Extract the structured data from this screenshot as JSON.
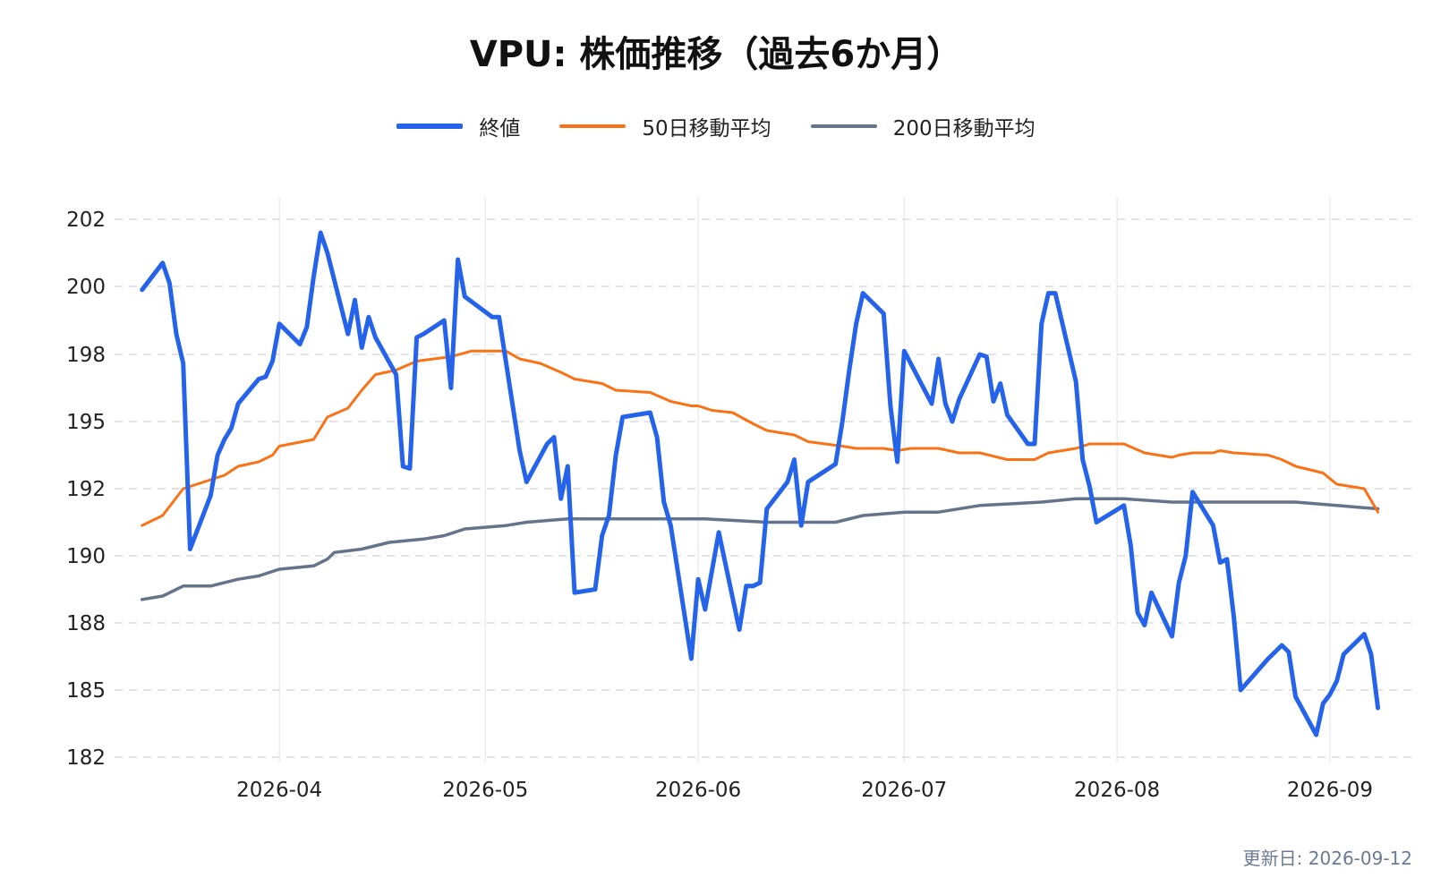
{
  "title": "VPU: 株価推移（過去6か月）",
  "updated": "更新日: 2026-09-12",
  "chart_data": {
    "type": "line",
    "title": "VPU: 株価推移（過去6か月）",
    "xlabel": "",
    "ylabel": "",
    "ylim": [
      181.5,
      202.5
    ],
    "y_ticks": [
      182,
      185,
      188,
      190,
      192,
      195,
      198,
      200,
      202
    ],
    "x_ticks": [
      "2026-04",
      "2026-05",
      "2026-06",
      "2026-07",
      "2026-08",
      "2026-09"
    ],
    "grid": true,
    "legend_position": "top-center",
    "colors": {
      "close": "#2563eb",
      "ma50": "#f97316",
      "ma200": "#64748b"
    },
    "series": [
      {
        "name": "終値",
        "points": [
          [
            "2026-03-12",
            199.9
          ],
          [
            "2026-03-15",
            200.7
          ],
          [
            "2026-03-16",
            200.1
          ],
          [
            "2026-03-17",
            198.6
          ],
          [
            "2026-03-18",
            197.6
          ],
          [
            "2026-03-19",
            190.2
          ],
          [
            "2026-03-22",
            191.8
          ],
          [
            "2026-03-23",
            193.5
          ],
          [
            "2026-03-24",
            194.2
          ],
          [
            "2026-03-25",
            194.7
          ],
          [
            "2026-03-26",
            195.8
          ],
          [
            "2026-03-29",
            196.9
          ],
          [
            "2026-03-30",
            197.0
          ],
          [
            "2026-03-31",
            197.7
          ],
          [
            "2026-04-01",
            198.9
          ],
          [
            "2026-04-04",
            198.3
          ],
          [
            "2026-04-05",
            198.8
          ],
          [
            "2026-04-06",
            200.3
          ],
          [
            "2026-04-07",
            201.6
          ],
          [
            "2026-04-08",
            201.0
          ],
          [
            "2026-04-11",
            198.6
          ],
          [
            "2026-04-12",
            199.6
          ],
          [
            "2026-04-13",
            198.2
          ],
          [
            "2026-04-14",
            199.1
          ],
          [
            "2026-04-15",
            198.5
          ],
          [
            "2026-04-18",
            197.1
          ],
          [
            "2026-04-19",
            193.0
          ],
          [
            "2026-04-20",
            192.9
          ],
          [
            "2026-04-21",
            198.5
          ],
          [
            "2026-04-22",
            198.6
          ],
          [
            "2026-04-25",
            199.0
          ],
          [
            "2026-04-26",
            196.5
          ],
          [
            "2026-04-27",
            200.8
          ],
          [
            "2026-04-28",
            199.7
          ],
          [
            "2026-05-02",
            199.1
          ],
          [
            "2026-05-03",
            199.1
          ],
          [
            "2026-05-06",
            193.7
          ],
          [
            "2026-05-07",
            192.3
          ],
          [
            "2026-05-10",
            194.0
          ],
          [
            "2026-05-11",
            194.3
          ],
          [
            "2026-05-12",
            191.7
          ],
          [
            "2026-05-13",
            193.0
          ],
          [
            "2026-05-14",
            188.9
          ],
          [
            "2026-05-17",
            189.0
          ],
          [
            "2026-05-18",
            190.6
          ],
          [
            "2026-05-19",
            191.2
          ],
          [
            "2026-05-20",
            193.5
          ],
          [
            "2026-05-21",
            195.2
          ],
          [
            "2026-05-25",
            195.4
          ],
          [
            "2026-05-26",
            194.3
          ],
          [
            "2026-05-27",
            191.6
          ],
          [
            "2026-05-28",
            190.9
          ],
          [
            "2026-05-31",
            186.4
          ],
          [
            "2026-06-01",
            189.3
          ],
          [
            "2026-06-02",
            188.4
          ],
          [
            "2026-06-04",
            190.7
          ],
          [
            "2026-06-07",
            187.7
          ],
          [
            "2026-06-08",
            189.1
          ],
          [
            "2026-06-09",
            189.1
          ],
          [
            "2026-06-10",
            189.2
          ],
          [
            "2026-06-11",
            191.4
          ],
          [
            "2026-06-14",
            192.3
          ],
          [
            "2026-06-15",
            193.3
          ],
          [
            "2026-06-16",
            190.9
          ],
          [
            "2026-06-17",
            192.3
          ],
          [
            "2026-06-21",
            193.1
          ],
          [
            "2026-06-22",
            195.0
          ],
          [
            "2026-06-23",
            197.3
          ],
          [
            "2026-06-24",
            198.9
          ],
          [
            "2026-06-25",
            199.8
          ],
          [
            "2026-06-28",
            199.2
          ],
          [
            "2026-06-29",
            195.7
          ],
          [
            "2026-06-30",
            193.2
          ],
          [
            "2026-07-01",
            198.1
          ],
          [
            "2026-07-05",
            195.8
          ],
          [
            "2026-07-06",
            197.8
          ],
          [
            "2026-07-07",
            195.8
          ],
          [
            "2026-07-08",
            195.0
          ],
          [
            "2026-07-09",
            196.0
          ],
          [
            "2026-07-12",
            198.0
          ],
          [
            "2026-07-13",
            197.9
          ],
          [
            "2026-07-14",
            195.9
          ],
          [
            "2026-07-15",
            196.7
          ],
          [
            "2026-07-16",
            195.3
          ],
          [
            "2026-07-19",
            194.0
          ],
          [
            "2026-07-20",
            194.0
          ],
          [
            "2026-07-21",
            198.9
          ],
          [
            "2026-07-22",
            199.8
          ],
          [
            "2026-07-23",
            199.8
          ],
          [
            "2026-07-26",
            196.8
          ],
          [
            "2026-07-27",
            193.3
          ],
          [
            "2026-07-28",
            192.1
          ],
          [
            "2026-07-29",
            191.0
          ],
          [
            "2026-08-02",
            191.5
          ],
          [
            "2026-08-03",
            190.3
          ],
          [
            "2026-08-04",
            188.3
          ],
          [
            "2026-08-05",
            187.9
          ],
          [
            "2026-08-06",
            188.9
          ],
          [
            "2026-08-09",
            187.4
          ],
          [
            "2026-08-10",
            189.2
          ],
          [
            "2026-08-11",
            190.0
          ],
          [
            "2026-08-12",
            191.9
          ],
          [
            "2026-08-15",
            190.9
          ],
          [
            "2026-08-16",
            189.8
          ],
          [
            "2026-08-17",
            189.9
          ],
          [
            "2026-08-18",
            188.2
          ],
          [
            "2026-08-19",
            185.0
          ],
          [
            "2026-08-23",
            186.4
          ],
          [
            "2026-08-24",
            186.7
          ],
          [
            "2026-08-25",
            187.0
          ],
          [
            "2026-08-26",
            186.7
          ],
          [
            "2026-08-27",
            184.7
          ],
          [
            "2026-08-30",
            183.0
          ],
          [
            "2026-08-31",
            184.4
          ],
          [
            "2026-09-01",
            184.8
          ],
          [
            "2026-09-02",
            185.4
          ],
          [
            "2026-09-03",
            186.6
          ],
          [
            "2026-09-06",
            187.5
          ],
          [
            "2026-09-07",
            186.6
          ],
          [
            "2026-09-08",
            184.2
          ]
        ]
      },
      {
        "name": "50日移動平均",
        "points": [
          [
            "2026-03-12",
            190.9
          ],
          [
            "2026-03-15",
            191.2
          ],
          [
            "2026-03-18",
            192.0
          ],
          [
            "2026-03-21",
            192.3
          ],
          [
            "2026-03-24",
            192.6
          ],
          [
            "2026-03-25",
            192.8
          ],
          [
            "2026-03-26",
            193.0
          ],
          [
            "2026-03-29",
            193.2
          ],
          [
            "2026-03-31",
            193.5
          ],
          [
            "2026-04-01",
            193.9
          ],
          [
            "2026-04-06",
            194.2
          ],
          [
            "2026-04-08",
            195.2
          ],
          [
            "2026-04-11",
            195.6
          ],
          [
            "2026-04-13",
            196.4
          ],
          [
            "2026-04-15",
            197.1
          ],
          [
            "2026-04-18",
            197.3
          ],
          [
            "2026-04-21",
            197.7
          ],
          [
            "2026-04-26",
            197.9
          ],
          [
            "2026-04-29",
            198.1
          ],
          [
            "2026-05-04",
            198.1
          ],
          [
            "2026-05-06",
            197.8
          ],
          [
            "2026-05-09",
            197.6
          ],
          [
            "2026-05-12",
            197.2
          ],
          [
            "2026-05-14",
            196.9
          ],
          [
            "2026-05-18",
            196.7
          ],
          [
            "2026-05-20",
            196.4
          ],
          [
            "2026-05-25",
            196.3
          ],
          [
            "2026-05-28",
            195.9
          ],
          [
            "2026-05-31",
            195.7
          ],
          [
            "2026-06-01",
            195.7
          ],
          [
            "2026-06-03",
            195.5
          ],
          [
            "2026-06-06",
            195.4
          ],
          [
            "2026-06-09",
            194.9
          ],
          [
            "2026-06-11",
            194.6
          ],
          [
            "2026-06-15",
            194.4
          ],
          [
            "2026-06-17",
            194.1
          ],
          [
            "2026-06-22",
            193.9
          ],
          [
            "2026-06-24",
            193.8
          ],
          [
            "2026-06-28",
            193.8
          ],
          [
            "2026-06-30",
            193.7
          ],
          [
            "2026-07-02",
            193.8
          ],
          [
            "2026-07-06",
            193.8
          ],
          [
            "2026-07-09",
            193.6
          ],
          [
            "2026-07-12",
            193.6
          ],
          [
            "2026-07-16",
            193.3
          ],
          [
            "2026-07-20",
            193.3
          ],
          [
            "2026-07-22",
            193.6
          ],
          [
            "2026-07-26",
            193.8
          ],
          [
            "2026-07-28",
            194.0
          ],
          [
            "2026-08-02",
            194.0
          ],
          [
            "2026-08-05",
            193.6
          ],
          [
            "2026-08-09",
            193.4
          ],
          [
            "2026-08-10",
            193.5
          ],
          [
            "2026-08-12",
            193.6
          ],
          [
            "2026-08-15",
            193.6
          ],
          [
            "2026-08-16",
            193.7
          ],
          [
            "2026-08-18",
            193.6
          ],
          [
            "2026-08-23",
            193.5
          ],
          [
            "2026-08-25",
            193.3
          ],
          [
            "2026-08-27",
            193.0
          ],
          [
            "2026-08-31",
            192.7
          ],
          [
            "2026-09-02",
            192.2
          ],
          [
            "2026-09-06",
            192.0
          ],
          [
            "2026-09-08",
            191.3
          ]
        ]
      },
      {
        "name": "200日移動平均",
        "points": [
          [
            "2026-03-12",
            188.7
          ],
          [
            "2026-03-15",
            188.8
          ],
          [
            "2026-03-18",
            189.1
          ],
          [
            "2026-03-22",
            189.1
          ],
          [
            "2026-03-26",
            189.3
          ],
          [
            "2026-03-29",
            189.4
          ],
          [
            "2026-04-01",
            189.6
          ],
          [
            "2026-04-06",
            189.7
          ],
          [
            "2026-04-08",
            189.9
          ],
          [
            "2026-04-09",
            190.1
          ],
          [
            "2026-04-13",
            190.2
          ],
          [
            "2026-04-17",
            190.4
          ],
          [
            "2026-04-22",
            190.5
          ],
          [
            "2026-04-25",
            190.6
          ],
          [
            "2026-04-28",
            190.8
          ],
          [
            "2026-05-04",
            190.9
          ],
          [
            "2026-05-07",
            191.0
          ],
          [
            "2026-05-13",
            191.1
          ],
          [
            "2026-05-22",
            191.1
          ],
          [
            "2026-06-02",
            191.1
          ],
          [
            "2026-06-11",
            191.0
          ],
          [
            "2026-06-21",
            191.0
          ],
          [
            "2026-06-25",
            191.2
          ],
          [
            "2026-07-01",
            191.3
          ],
          [
            "2026-07-06",
            191.3
          ],
          [
            "2026-07-12",
            191.5
          ],
          [
            "2026-07-21",
            191.6
          ],
          [
            "2026-07-26",
            191.7
          ],
          [
            "2026-08-02",
            191.7
          ],
          [
            "2026-08-09",
            191.6
          ],
          [
            "2026-08-19",
            191.6
          ],
          [
            "2026-08-27",
            191.6
          ],
          [
            "2026-09-02",
            191.5
          ],
          [
            "2026-09-08",
            191.4
          ]
        ]
      }
    ]
  }
}
